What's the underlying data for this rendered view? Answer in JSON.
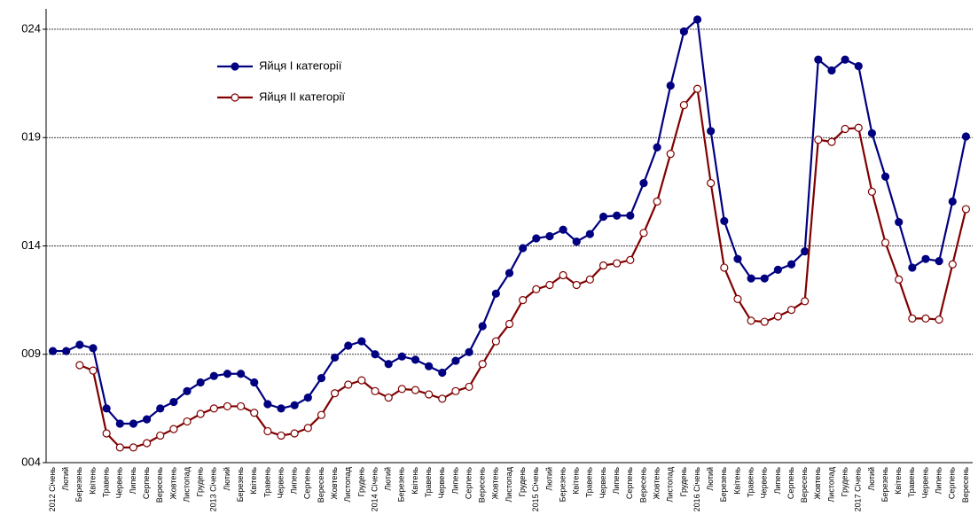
{
  "chart_data": {
    "type": "line",
    "categories": [
      "2012 Січень",
      "Лютий",
      "Березень",
      "Квітень",
      "Травень",
      "Червень",
      "Липень",
      "Серпень",
      "Вересень",
      "Жовтень",
      "Листопад",
      "Грудень",
      "2013 Січень",
      "Лютий",
      "Березень",
      "Квітень",
      "Травень",
      "Червень",
      "Липень",
      "Серпень",
      "Вересень",
      "Жовтень",
      "Листопад",
      "Грудень",
      "2014 Січень",
      "Лютий",
      "Березень",
      "Квітень",
      "Травень",
      "Червень",
      "Липень",
      "Серпень",
      "Вересень",
      "Жовтень",
      "Листопад",
      "Грудень",
      "2015 Січень",
      "Лютий",
      "Березень",
      "Квітень",
      "Травень",
      "Червень",
      "Липень",
      "Серпень",
      "Вересень",
      "Жовтень",
      "Листопад",
      "Грудень",
      "2016 Січень",
      "Лютий",
      "Березень",
      "Квітень",
      "Травень",
      "Червень",
      "Липень",
      "Серпень",
      "Вересень",
      "Жовтень",
      "Листопад",
      "Грудень",
      "2017 Січень",
      "Лютий",
      "Березень",
      "Квітень",
      "Травень",
      "Червень",
      "Липень",
      "Серпень",
      "Вересень"
    ],
    "series": [
      {
        "name": "Яйця І категорії",
        "color": "#000080",
        "marker_fill": "#000080",
        "values": [
          9.15,
          9.15,
          9.44,
          9.28,
          6.5,
          5.8,
          5.8,
          6.0,
          6.5,
          6.8,
          7.3,
          7.7,
          8.0,
          8.1,
          8.1,
          7.7,
          6.7,
          6.5,
          6.65,
          7.0,
          7.9,
          8.85,
          9.4,
          9.6,
          9.0,
          8.55,
          8.9,
          8.75,
          8.45,
          8.15,
          8.7,
          9.1,
          10.3,
          11.8,
          12.75,
          13.9,
          14.35,
          14.45,
          14.75,
          14.2,
          14.55,
          15.35,
          15.4,
          15.4,
          16.9,
          18.55,
          21.4,
          23.9,
          24.45,
          19.3,
          15.15,
          13.4,
          12.5,
          12.5,
          12.9,
          13.15,
          13.75,
          22.6,
          22.1,
          22.6,
          22.3,
          19.2,
          17.2,
          15.1,
          13.0,
          13.4,
          13.3,
          16.05,
          19.05
        ]
      },
      {
        "name": "Яйця ІІ категорії",
        "color": "#800000",
        "marker_fill": "#ffffff",
        "values": [
          null,
          null,
          8.5,
          8.25,
          5.35,
          4.7,
          4.7,
          4.9,
          5.25,
          5.55,
          5.9,
          6.25,
          6.5,
          6.6,
          6.6,
          6.3,
          5.45,
          5.25,
          5.35,
          5.6,
          6.2,
          7.2,
          7.6,
          7.8,
          7.3,
          7.0,
          7.4,
          7.35,
          7.15,
          6.95,
          7.3,
          7.5,
          8.55,
          9.6,
          10.4,
          11.5,
          12.0,
          12.2,
          12.65,
          12.2,
          12.45,
          13.1,
          13.2,
          13.35,
          14.6,
          16.05,
          18.25,
          20.5,
          21.25,
          16.9,
          13.0,
          11.55,
          10.55,
          10.5,
          10.75,
          11.05,
          11.45,
          18.9,
          18.8,
          19.4,
          19.45,
          16.5,
          14.15,
          12.45,
          10.65,
          10.65,
          10.6,
          13.15,
          15.7
        ]
      }
    ],
    "ylim": [
      4,
      25
    ],
    "yticks": [
      {
        "value": 4,
        "label": "004"
      },
      {
        "value": 9,
        "label": "009"
      },
      {
        "value": 14,
        "label": "014"
      },
      {
        "value": 19,
        "label": "019"
      },
      {
        "value": 24,
        "label": "024"
      }
    ],
    "grid": true,
    "legend": "upper left"
  }
}
